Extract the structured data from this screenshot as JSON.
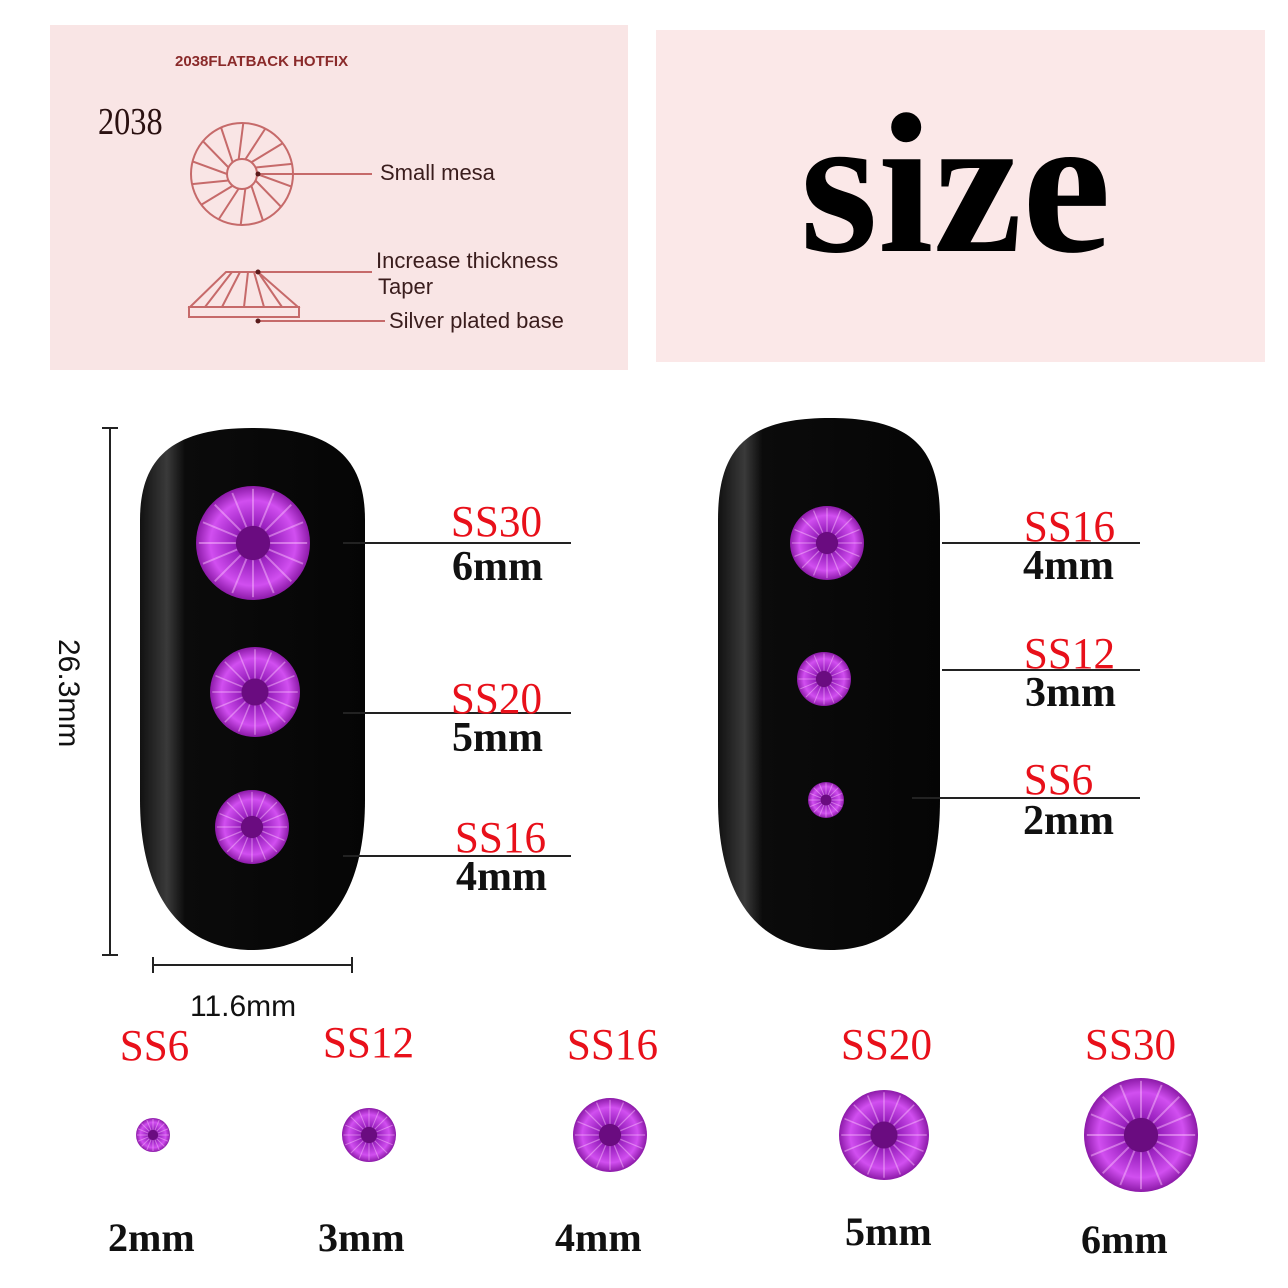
{
  "diagram_panel": {
    "heading": "2038FLATBACK HOTFIX",
    "model": "2038",
    "labels": [
      "Small mesa",
      "Increase thickness",
      "Taper",
      "Silver plated base"
    ]
  },
  "title": "size",
  "nail_dimensions": {
    "height": "26.3mm",
    "width": "11.6mm"
  },
  "nail_left": [
    {
      "code": "SS30",
      "size": "6mm"
    },
    {
      "code": "SS20",
      "size": "5mm"
    },
    {
      "code": "SS16",
      "size": "4mm"
    }
  ],
  "nail_right": [
    {
      "code": "SS16",
      "size": "4mm"
    },
    {
      "code": "SS12",
      "size": "3mm"
    },
    {
      "code": "SS6",
      "size": "2mm"
    }
  ],
  "size_chart": [
    {
      "code": "SS6",
      "size": "2mm"
    },
    {
      "code": "SS12",
      "size": "3mm"
    },
    {
      "code": "SS16",
      "size": "4mm"
    },
    {
      "code": "SS20",
      "size": "5mm"
    },
    {
      "code": "SS30",
      "size": "6mm"
    }
  ],
  "colors": {
    "gem": "#b01fd0",
    "label_red": "#e8101a",
    "panel_pink": "#f9e5e5",
    "diagram_line": "#c66a6a"
  }
}
